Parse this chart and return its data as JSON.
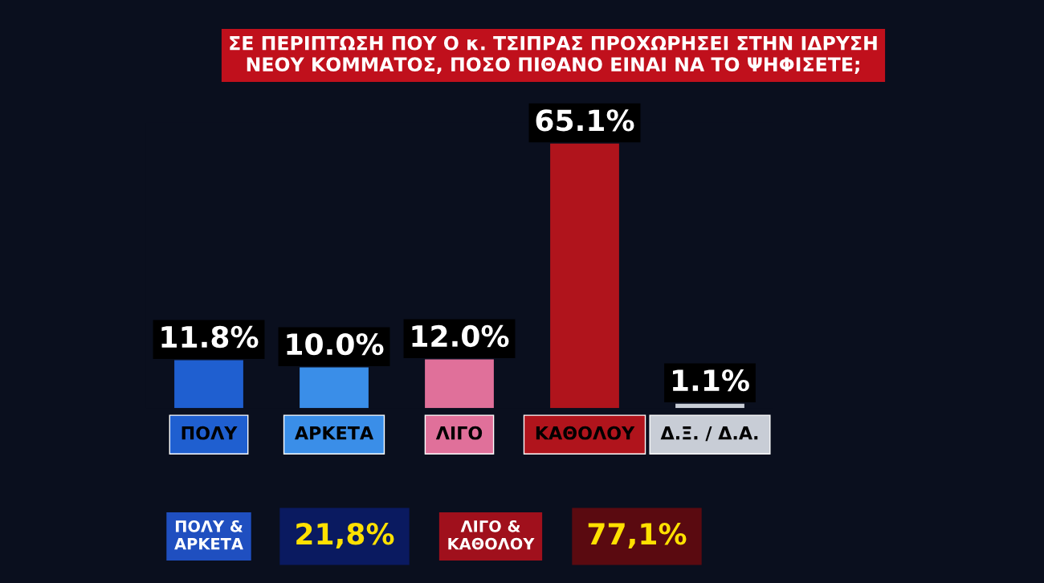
{
  "chart_data": {
    "type": "bar",
    "title": "ΣΕ ΠΕΡΙΠΤΩΣΗ ΠΟΥ Ο κ. ΤΣΙΠΡΑΣ ΠΡΟΧΩΡΗΣΕΙ ΣΤΗΝ ΙΔΡΥΣΗ\nΝΕΟΥ ΚΟΜΜΑΤΟΣ, ΠΟΣΟ ΠΙΘΑΝΟ ΕΙΝΑΙ ΝΑ ΤΟ ΨΗΦΙΣΕΤΕ;",
    "categories": [
      "ΠΟΛΥ",
      "ΑΡΚΕΤΑ",
      "ΛΙΓΟ",
      "ΚΑΘΟΛΟΥ",
      "Δ.Ξ. / Δ.Α."
    ],
    "values": [
      11.8,
      10.0,
      12.0,
      65.1,
      1.1
    ],
    "value_labels": [
      "11.8%",
      "10.0%",
      "12.0%",
      "65.1%",
      "1.1%"
    ],
    "colors": [
      "#1f5fd0",
      "#3a8ee8",
      "#e0709a",
      "#b0141c",
      "#c8cdd6"
    ],
    "annotations": [
      "ΠΟΛΥ &\nΑΡΚΕΤΑ",
      "21,8%",
      "ΛΙΓΟ &\nΚΑΘΟΛΟΥ",
      "77,1%"
    ],
    "grid": false,
    "legend": false
  }
}
